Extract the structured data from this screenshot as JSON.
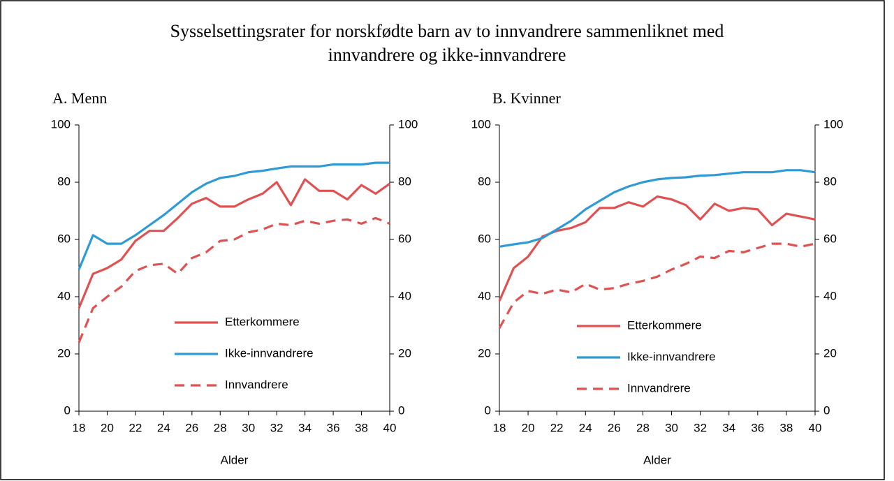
{
  "title": [
    "Sysselsettingsrater for norskfødte barn av to innvandrere sammenliknet med",
    "innvandrere og ikke-innvandrere"
  ],
  "chart_data": [
    {
      "type": "line",
      "subtitle": "A. Menn",
      "x_label": "Alder",
      "x": [
        18,
        19,
        20,
        21,
        22,
        23,
        24,
        25,
        26,
        27,
        28,
        29,
        30,
        31,
        32,
        33,
        34,
        35,
        36,
        37,
        38,
        39,
        40
      ],
      "xlim": [
        18,
        40
      ],
      "xticks": [
        18,
        20,
        22,
        24,
        26,
        28,
        30,
        32,
        34,
        36,
        38,
        40
      ],
      "ylim": [
        0,
        100
      ],
      "yticks": [
        0,
        20,
        40,
        60,
        80,
        100
      ],
      "y2lim": [
        0,
        100
      ],
      "y2ticks": [
        0,
        20,
        40,
        60,
        80,
        100
      ],
      "legend": "lower middle",
      "series": [
        {
          "name": "Etterkommere",
          "color": "#e05252",
          "dash": false,
          "values": [
            36,
            48,
            50,
            53,
            59.5,
            63,
            63,
            67.5,
            72.5,
            74.5,
            71.5,
            71.5,
            74,
            76,
            80,
            72,
            81,
            77,
            77,
            74,
            79,
            76,
            79.5
          ]
        },
        {
          "name": "Ikke-innvandrere",
          "color": "#2e9bd6",
          "dash": false,
          "values": [
            49.5,
            61.5,
            58.5,
            58.5,
            61.5,
            65,
            68.5,
            72.5,
            76.5,
            79.5,
            81.5,
            82.2,
            83.5,
            84,
            84.8,
            85.5,
            85.5,
            85.5,
            86.2,
            86.2,
            86.2,
            86.8,
            86.8
          ]
        },
        {
          "name": "Innvandrere",
          "color": "#e05252",
          "dash": true,
          "values": [
            24,
            36,
            40,
            43.5,
            49,
            51,
            51.5,
            48,
            53.5,
            55.5,
            59.5,
            60,
            62.5,
            63.5,
            65.5,
            65,
            66.5,
            65.5,
            66.5,
            67,
            65.5,
            67.5,
            65.5
          ]
        }
      ]
    },
    {
      "type": "line",
      "subtitle": "B. Kvinner",
      "x_label": "Alder",
      "x": [
        18,
        19,
        20,
        21,
        22,
        23,
        24,
        25,
        26,
        27,
        28,
        29,
        30,
        31,
        32,
        33,
        34,
        35,
        36,
        37,
        38,
        39,
        40
      ],
      "xlim": [
        18,
        40
      ],
      "xticks": [
        18,
        20,
        22,
        24,
        26,
        28,
        30,
        32,
        34,
        36,
        38,
        40
      ],
      "ylim": [
        0,
        100
      ],
      "yticks": [
        0,
        20,
        40,
        60,
        80,
        100
      ],
      "y2lim": [
        0,
        100
      ],
      "y2ticks": [
        0,
        20,
        40,
        60,
        80,
        100
      ],
      "legend": "lower middle",
      "series": [
        {
          "name": "Etterkommere",
          "color": "#e05252",
          "dash": false,
          "values": [
            38.5,
            50,
            54,
            61,
            63,
            64,
            66,
            71,
            71,
            73,
            71.5,
            75,
            74,
            72,
            67,
            72.5,
            70,
            71,
            70.5,
            65,
            69,
            68,
            67
          ]
        },
        {
          "name": "Ikke-innvandrere",
          "color": "#2e9bd6",
          "dash": false,
          "values": [
            57.5,
            58.3,
            59,
            60.5,
            63.5,
            66.5,
            70.5,
            73.5,
            76.5,
            78.5,
            80,
            81,
            81.5,
            81.7,
            82.3,
            82.5,
            83,
            83.5,
            83.5,
            83.5,
            84.2,
            84.2,
            83.5
          ]
        },
        {
          "name": "Innvandrere",
          "color": "#e05252",
          "dash": true,
          "values": [
            29,
            38,
            42,
            41,
            42.5,
            41.5,
            44.5,
            42.5,
            43,
            44.5,
            45.5,
            47,
            49.5,
            51.5,
            54,
            53.5,
            56,
            55.5,
            57,
            58.5,
            58.5,
            57.5,
            58.5
          ]
        }
      ]
    }
  ]
}
